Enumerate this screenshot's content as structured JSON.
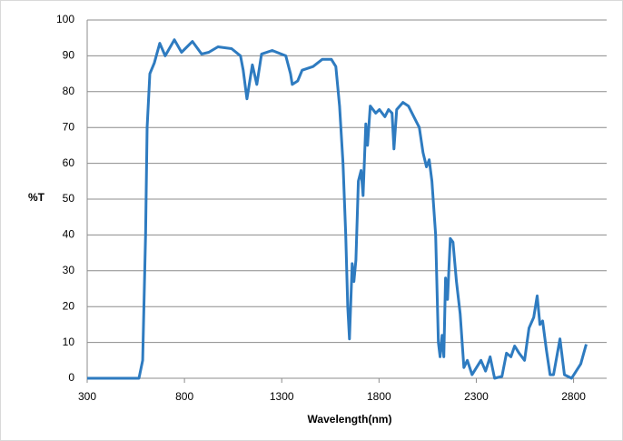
{
  "chart_data": {
    "type": "line",
    "x_label": "Wavelength(nm)",
    "y_label": "%T",
    "x": [
      300,
      566,
      585,
      600,
      608,
      622,
      645,
      673,
      701,
      748,
      785,
      841,
      888,
      925,
      972,
      1042,
      1088,
      1102,
      1121,
      1149,
      1172,
      1196,
      1251,
      1321,
      1345,
      1354,
      1382,
      1405,
      1461,
      1508,
      1555,
      1578,
      1597,
      1615,
      1629,
      1639,
      1648,
      1662,
      1671,
      1681,
      1694,
      1708,
      1718,
      1732,
      1741,
      1755,
      1783,
      1802,
      1830,
      1849,
      1867,
      1877,
      1891,
      1923,
      1951,
      1979,
      2007,
      2026,
      2044,
      2058,
      2072,
      2091,
      2105,
      2114,
      2124,
      2133,
      2142,
      2152,
      2166,
      2180,
      2198,
      2217,
      2236,
      2254,
      2278,
      2324,
      2348,
      2371,
      2394,
      2432,
      2455,
      2478,
      2497,
      2520,
      2548,
      2571,
      2595,
      2613,
      2627,
      2641,
      2660,
      2679,
      2697,
      2730,
      2753,
      2790,
      2837,
      2865
    ],
    "values": [
      0,
      0,
      5,
      40,
      70,
      85,
      88,
      93.5,
      90,
      94.5,
      91,
      94,
      90.5,
      91,
      92.5,
      92,
      90,
      86,
      78,
      87.5,
      82,
      90.5,
      91.5,
      90,
      85,
      82,
      83,
      86,
      87,
      89,
      89,
      87,
      76,
      60,
      40,
      20,
      11,
      32,
      27,
      33,
      55,
      58,
      51,
      71,
      65,
      76,
      74,
      75,
      73,
      75,
      74,
      64,
      75,
      77,
      76,
      73,
      70,
      63,
      59,
      61,
      55,
      40,
      10,
      6,
      12,
      6,
      28,
      22,
      39,
      38,
      27,
      18,
      3,
      5,
      1,
      5,
      2,
      6,
      0,
      0.5,
      7,
      6,
      9,
      7,
      5,
      14,
      17,
      23,
      15,
      16,
      8,
      1,
      1,
      11,
      1,
      0,
      4,
      9.5
    ],
    "color": "#2e7bc0",
    "xlim": [
      300,
      2970
    ],
    "xticks": [
      300,
      800,
      1300,
      1800,
      2300,
      2800
    ],
    "ylim": [
      0,
      100
    ],
    "yticks": [
      0,
      10,
      20,
      30,
      40,
      50,
      60,
      70,
      80,
      90,
      100
    ],
    "grid": true
  }
}
